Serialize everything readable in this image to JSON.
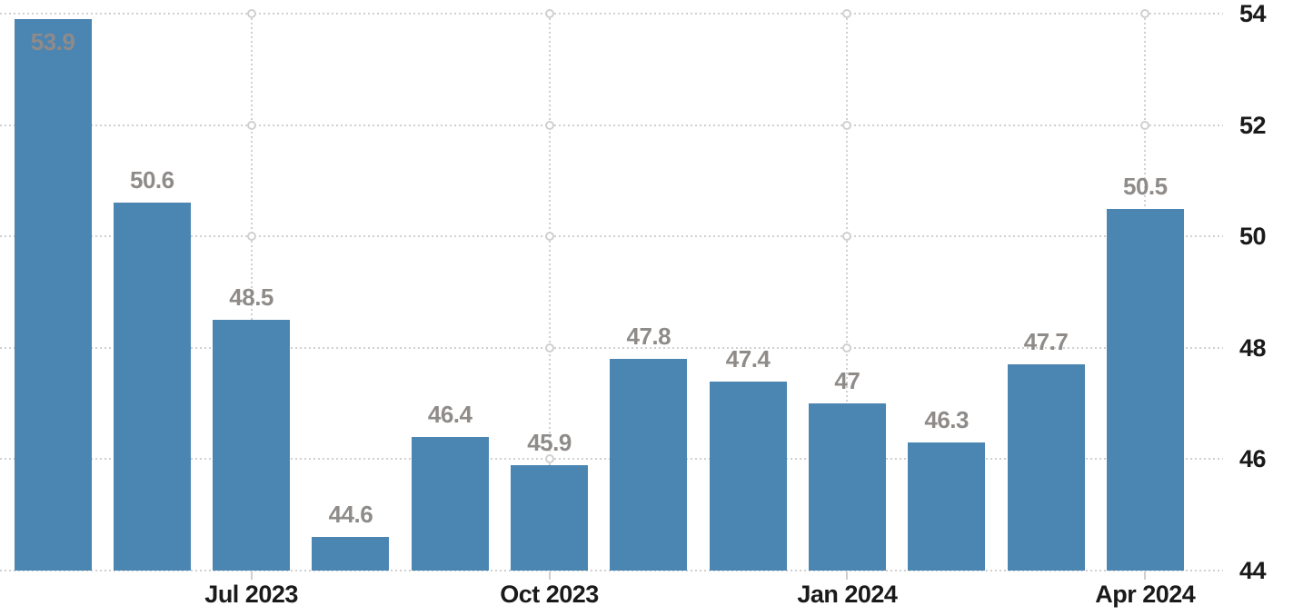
{
  "chart_data": {
    "type": "bar",
    "title": "",
    "xlabel": "",
    "ylabel": "",
    "values": [
      53.9,
      50.6,
      48.5,
      44.6,
      46.4,
      45.9,
      47.8,
      47.4,
      47,
      46.3,
      47.7,
      50.5
    ],
    "bar_labels": [
      "53.9",
      "50.6",
      "48.5",
      "44.6",
      "46.4",
      "45.9",
      "47.8",
      "47.4",
      "47",
      "46.3",
      "47.7",
      "50.5"
    ],
    "x_ticks": [
      {
        "bar_index": 2,
        "label": "Jul 2023"
      },
      {
        "bar_index": 5,
        "label": "Oct 2023"
      },
      {
        "bar_index": 8,
        "label": "Jan 2024"
      },
      {
        "bar_index": 11,
        "label": "Apr 2024"
      }
    ],
    "y_ticks": [
      54,
      52,
      50,
      48,
      46,
      44
    ],
    "ylim": [
      44,
      54
    ],
    "y_axis_position": "right",
    "legend": "none",
    "grid": "dotted horizontal lines at y ticks, dotted vertical lines at x ticks, circle nodes at intersections",
    "colors": {
      "bar": "#4b85b2",
      "value_label": "#8e8b89",
      "tick_label": "#1a1a1a",
      "gridline": "#d0d0d0",
      "tick_mark": "#cfcfcf",
      "background": "#ffffff"
    }
  }
}
